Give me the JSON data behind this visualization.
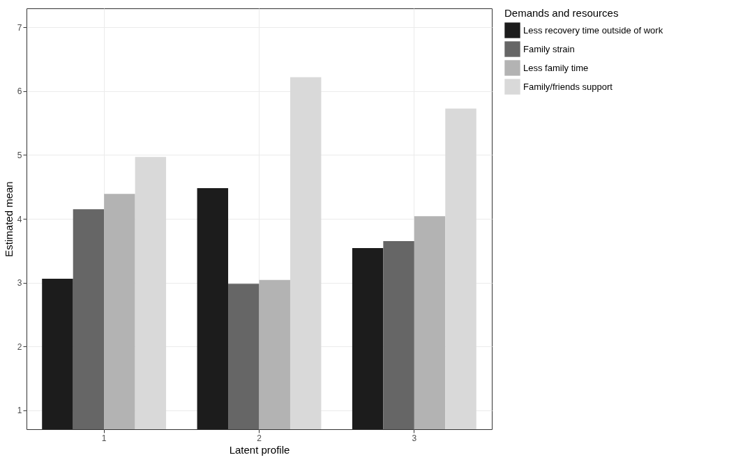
{
  "chart_data": {
    "type": "bar",
    "xlabel": "Latent profile",
    "ylabel": "Estimated mean",
    "legend_title": "Demands and resources",
    "categories": [
      "1",
      "2",
      "3"
    ],
    "series": [
      {
        "name": "Less recovery time outside of work",
        "color": "#1c1c1c",
        "values": [
          3.06,
          4.48,
          3.54
        ]
      },
      {
        "name": "Family strain",
        "color": "#666666",
        "values": [
          4.15,
          2.98,
          3.65
        ]
      },
      {
        "name": "Less family time",
        "color": "#b3b3b3",
        "values": [
          4.39,
          3.04,
          4.04
        ]
      },
      {
        "name": "Family/friends support",
        "color": "#d9d9d9",
        "values": [
          4.97,
          6.22,
          5.73
        ]
      }
    ],
    "ylim": [
      0.7,
      7.3
    ],
    "yticks": [
      1,
      2,
      3,
      4,
      5,
      6,
      7
    ],
    "grid": true,
    "legend": "right"
  }
}
